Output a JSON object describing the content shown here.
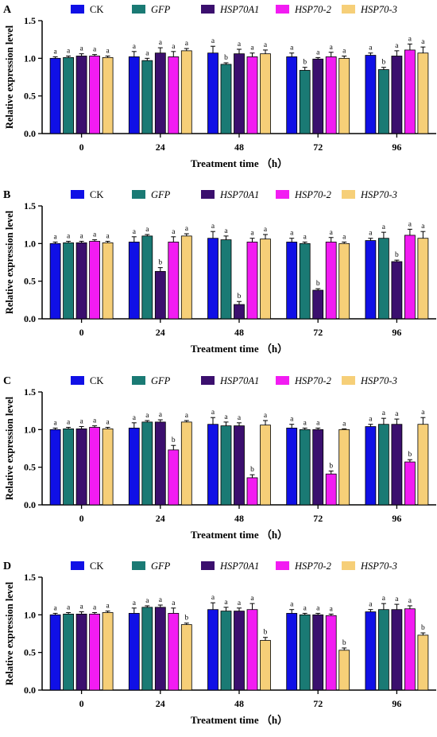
{
  "legend": [
    {
      "name": "CK",
      "italic": false
    },
    {
      "name": "GFP",
      "italic": true
    },
    {
      "name": "HSP70A1",
      "italic": true
    },
    {
      "name": "HSP70-2",
      "italic": true
    },
    {
      "name": "HSP70-3",
      "italic": true
    }
  ],
  "colors": [
    "#1010e6",
    "#1a7a74",
    "#3b0f6e",
    "#f21cf2",
    "#f6cf78"
  ],
  "chart_data": [
    {
      "panel": "A",
      "type": "bar",
      "xlabel": "Treatment time （h）",
      "ylabel": "Relative expression level",
      "categories": [
        "0",
        "24",
        "48",
        "72",
        "96"
      ],
      "ylim": [
        0,
        1.5
      ],
      "yticks": [
        "0.0",
        "0.5",
        "1.0",
        "1.5"
      ],
      "series": [
        {
          "name": "CK",
          "values": [
            1.0,
            1.02,
            1.07,
            1.02,
            1.04
          ],
          "errors": [
            0.02,
            0.07,
            0.09,
            0.05,
            0.03
          ],
          "labels": [
            "a",
            "a",
            "a",
            "a",
            "a"
          ]
        },
        {
          "name": "GFP",
          "values": [
            1.01,
            0.97,
            0.92,
            0.84,
            0.85
          ],
          "errors": [
            0.02,
            0.03,
            0.02,
            0.04,
            0.03
          ],
          "labels": [
            "a",
            "a",
            "b",
            "b",
            "b"
          ]
        },
        {
          "name": "HSP70A1",
          "values": [
            1.03,
            1.07,
            1.06,
            0.99,
            1.03
          ],
          "errors": [
            0.03,
            0.07,
            0.06,
            0.02,
            0.07
          ],
          "labels": [
            "a",
            "a",
            "a",
            "a",
            "a"
          ]
        },
        {
          "name": "HSP70-2",
          "values": [
            1.03,
            1.02,
            1.02,
            1.02,
            1.11
          ],
          "errors": [
            0.02,
            0.07,
            0.05,
            0.06,
            0.08
          ],
          "labels": [
            "a",
            "a",
            "a",
            "a",
            "a"
          ]
        },
        {
          "name": "HSP70-3",
          "values": [
            1.01,
            1.1,
            1.06,
            1.0,
            1.07
          ],
          "errors": [
            0.02,
            0.03,
            0.05,
            0.03,
            0.08
          ],
          "labels": [
            "a",
            "a",
            "a",
            "a",
            "a"
          ]
        }
      ]
    },
    {
      "panel": "B",
      "type": "bar",
      "xlabel": "Treatment time （h）",
      "ylabel": "Relative expression level",
      "categories": [
        "0",
        "24",
        "48",
        "72",
        "96"
      ],
      "ylim": [
        0,
        1.5
      ],
      "yticks": [
        "0.0",
        "0.5",
        "1.0",
        "1.5"
      ],
      "series": [
        {
          "name": "CK",
          "values": [
            1.0,
            1.02,
            1.07,
            1.02,
            1.04
          ],
          "errors": [
            0.02,
            0.07,
            0.09,
            0.05,
            0.03
          ],
          "labels": [
            "a",
            "a",
            "a",
            "a",
            "a"
          ]
        },
        {
          "name": "GFP",
          "values": [
            1.01,
            1.1,
            1.05,
            1.0,
            1.07
          ],
          "errors": [
            0.02,
            0.02,
            0.05,
            0.02,
            0.08
          ],
          "labels": [
            "a",
            "a",
            "a",
            "a",
            "a"
          ]
        },
        {
          "name": "HSP70A1",
          "values": [
            1.01,
            0.63,
            0.19,
            0.38,
            0.76
          ],
          "errors": [
            0.02,
            0.05,
            0.04,
            0.02,
            0.02
          ],
          "labels": [
            "a",
            "b",
            "b",
            "b",
            "b"
          ]
        },
        {
          "name": "HSP70-2",
          "values": [
            1.03,
            1.02,
            1.02,
            1.02,
            1.11
          ],
          "errors": [
            0.02,
            0.07,
            0.05,
            0.06,
            0.08
          ],
          "labels": [
            "a",
            "a",
            "a",
            "a",
            "a"
          ]
        },
        {
          "name": "HSP70-3",
          "values": [
            1.01,
            1.1,
            1.06,
            1.0,
            1.07
          ],
          "errors": [
            0.02,
            0.03,
            0.06,
            0.02,
            0.09
          ],
          "labels": [
            "a",
            "a",
            "a",
            "a",
            "a"
          ]
        }
      ]
    },
    {
      "panel": "C",
      "type": "bar",
      "xlabel": "Treatment time （h）",
      "ylabel": "Relative expression level",
      "categories": [
        "0",
        "24",
        "48",
        "72",
        "96"
      ],
      "ylim": [
        0,
        1.5
      ],
      "yticks": [
        "0.0",
        "0.5",
        "1.0",
        "1.5"
      ],
      "series": [
        {
          "name": "CK",
          "values": [
            1.0,
            1.02,
            1.07,
            1.02,
            1.04
          ],
          "errors": [
            0.02,
            0.07,
            0.09,
            0.05,
            0.03
          ],
          "labels": [
            "a",
            "a",
            "a",
            "a",
            "a"
          ]
        },
        {
          "name": "GFP",
          "values": [
            1.01,
            1.1,
            1.05,
            1.0,
            1.07
          ],
          "errors": [
            0.02,
            0.02,
            0.05,
            0.02,
            0.08
          ],
          "labels": [
            "a",
            "a",
            "a",
            "a",
            "a"
          ]
        },
        {
          "name": "HSP70A1",
          "values": [
            1.01,
            1.1,
            1.05,
            1.0,
            1.07
          ],
          "errors": [
            0.03,
            0.03,
            0.04,
            0.02,
            0.07
          ],
          "labels": [
            "a",
            "a",
            "a",
            "a",
            "a"
          ]
        },
        {
          "name": "HSP70-2",
          "values": [
            1.03,
            0.73,
            0.36,
            0.41,
            0.57
          ],
          "errors": [
            0.02,
            0.06,
            0.04,
            0.04,
            0.03
          ],
          "labels": [
            "a",
            "b",
            "b",
            "b",
            "b"
          ]
        },
        {
          "name": "HSP70-3",
          "values": [
            1.01,
            1.1,
            1.06,
            1.0,
            1.07
          ],
          "errors": [
            0.02,
            0.02,
            0.06,
            0.01,
            0.09
          ],
          "labels": [
            "a",
            "a",
            "a",
            "a",
            "a"
          ]
        }
      ]
    },
    {
      "panel": "D",
      "type": "bar",
      "xlabel": "Treatment time （h）",
      "ylabel": "Relative expression level",
      "categories": [
        "0",
        "24",
        "48",
        "72",
        "96"
      ],
      "ylim": [
        0,
        1.5
      ],
      "yticks": [
        "0.0",
        "0.5",
        "1.0",
        "1.5"
      ],
      "series": [
        {
          "name": "CK",
          "values": [
            1.0,
            1.02,
            1.07,
            1.02,
            1.04
          ],
          "errors": [
            0.02,
            0.07,
            0.09,
            0.05,
            0.03
          ],
          "labels": [
            "a",
            "a",
            "a",
            "a",
            "a"
          ]
        },
        {
          "name": "GFP",
          "values": [
            1.01,
            1.1,
            1.05,
            1.0,
            1.07
          ],
          "errors": [
            0.02,
            0.02,
            0.05,
            0.02,
            0.08
          ],
          "labels": [
            "a",
            "a",
            "a",
            "a",
            "a"
          ]
        },
        {
          "name": "HSP70A1",
          "values": [
            1.01,
            1.1,
            1.05,
            1.0,
            1.07
          ],
          "errors": [
            0.03,
            0.03,
            0.04,
            0.02,
            0.07
          ],
          "labels": [
            "a",
            "a",
            "a",
            "a",
            "a"
          ]
        },
        {
          "name": "HSP70-2",
          "values": [
            1.01,
            1.02,
            1.07,
            0.99,
            1.08
          ],
          "errors": [
            0.02,
            0.07,
            0.08,
            0.02,
            0.04
          ],
          "labels": [
            "a",
            "a",
            "a",
            "a",
            "a"
          ]
        },
        {
          "name": "HSP70-3",
          "values": [
            1.03,
            0.87,
            0.66,
            0.53,
            0.73
          ],
          "errors": [
            0.02,
            0.02,
            0.04,
            0.03,
            0.03
          ],
          "labels": [
            "a",
            "b",
            "b",
            "b",
            "b"
          ]
        }
      ]
    }
  ]
}
